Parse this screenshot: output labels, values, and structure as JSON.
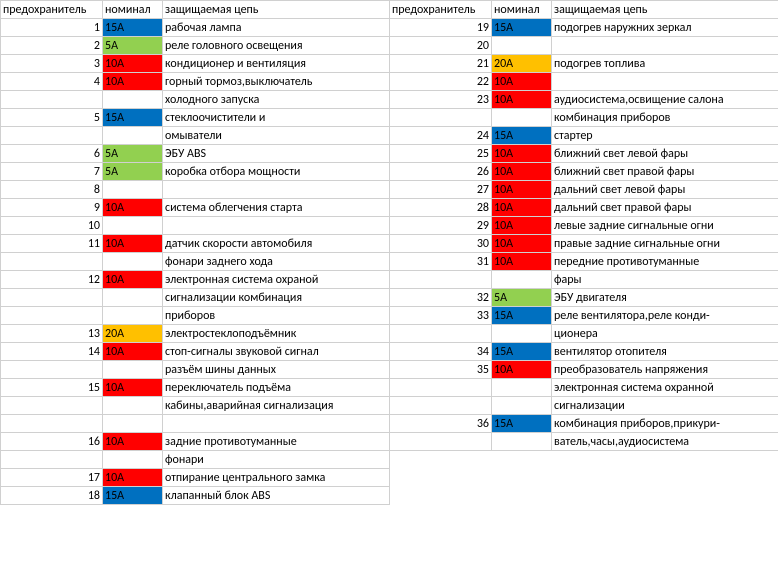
{
  "colors": {
    "blue": "#0070c0",
    "green": "#92d050",
    "red": "#ff0000",
    "orange": "#ffc000",
    "none": ""
  },
  "headers": {
    "fuse": "предохранитель",
    "nominal": "номинал",
    "circuit": "защищаемая цепь"
  },
  "left": [
    {
      "n": "1",
      "nom": "15А",
      "col": "blue",
      "desc": "рабочая лампа"
    },
    {
      "n": "2",
      "nom": "5А",
      "col": "green",
      "desc": "реле головного освещения"
    },
    {
      "n": "3",
      "nom": "10А",
      "col": "red",
      "desc": "кондиционер и вентиляция"
    },
    {
      "n": "4",
      "nom": "10А",
      "col": "red",
      "desc": "горный тормоз,выключатель"
    },
    {
      "n": "",
      "nom": "",
      "col": "none",
      "desc": "холодного запуска"
    },
    {
      "n": "5",
      "nom": "15А",
      "col": "blue",
      "desc": "стеклоочистители и"
    },
    {
      "n": "",
      "nom": "",
      "col": "none",
      "desc": "омыватели"
    },
    {
      "n": "6",
      "nom": "5А",
      "col": "green",
      "desc": "ЭБУ ABS"
    },
    {
      "n": "7",
      "nom": "5А",
      "col": "green",
      "desc": "коробка отбора мощности"
    },
    {
      "n": "8",
      "nom": "",
      "col": "none",
      "desc": ""
    },
    {
      "n": "9",
      "nom": "10А",
      "col": "red",
      "desc": "система облегчения старта"
    },
    {
      "n": "10",
      "nom": "",
      "col": "none",
      "desc": ""
    },
    {
      "n": "11",
      "nom": "10А",
      "col": "red",
      "desc": "датчик скорости автомобиля"
    },
    {
      "n": "",
      "nom": "",
      "col": "none",
      "desc": "фонари заднего хода"
    },
    {
      "n": "12",
      "nom": "10А",
      "col": "red",
      "desc": "электронная система охраной"
    },
    {
      "n": "",
      "nom": "",
      "col": "none",
      "desc": "сигнализации комбинация"
    },
    {
      "n": "",
      "nom": "",
      "col": "none",
      "desc": "приборов"
    },
    {
      "n": "13",
      "nom": "20А",
      "col": "orange",
      "desc": "электростеклоподъёмник"
    },
    {
      "n": "14",
      "nom": "10А",
      "col": "red",
      "desc": "стоп-сигналы звуковой сигнал"
    },
    {
      "n": "",
      "nom": "",
      "col": "none",
      "desc": "разъём шины данных"
    },
    {
      "n": "15",
      "nom": "10А",
      "col": "red",
      "desc": "переключатель подъёма"
    },
    {
      "n": "",
      "nom": "",
      "col": "none",
      "desc": "кабины,аварийная сигнализация"
    },
    {
      "n": "",
      "nom": "",
      "col": "none",
      "desc": ""
    },
    {
      "n": "16",
      "nom": "10А",
      "col": "red",
      "desc": "задние противотуманные"
    },
    {
      "n": "",
      "nom": "",
      "col": "none",
      "desc": "фонари"
    },
    {
      "n": "17",
      "nom": "10А",
      "col": "red",
      "desc": "отпирание центрального замка"
    },
    {
      "n": "18",
      "nom": "15А",
      "col": "blue",
      "desc": "клапанный блок ABS"
    }
  ],
  "right": [
    {
      "n": "19",
      "nom": "15А",
      "col": "blue",
      "desc": "подогрев наружних зеркал"
    },
    {
      "n": "20",
      "nom": "",
      "col": "none",
      "desc": ""
    },
    {
      "n": "21",
      "nom": "20А",
      "col": "orange",
      "desc": "подогрев топлива"
    },
    {
      "n": "22",
      "nom": "10А",
      "col": "red",
      "desc": ""
    },
    {
      "n": "23",
      "nom": "10А",
      "col": "red",
      "desc": "аудиосистема,освищение салона"
    },
    {
      "n": "",
      "nom": "",
      "col": "none",
      "desc": "комбинация приборов"
    },
    {
      "n": "24",
      "nom": "15А",
      "col": "blue",
      "desc": "стартер"
    },
    {
      "n": "25",
      "nom": "10А",
      "col": "red",
      "desc": "ближний свет левой фары"
    },
    {
      "n": "26",
      "nom": "10А",
      "col": "red",
      "desc": "ближний свет правой фары"
    },
    {
      "n": "27",
      "nom": "10А",
      "col": "red",
      "desc": "дальний свет левой фары"
    },
    {
      "n": "28",
      "nom": "10А",
      "col": "red",
      "desc": "дальний свет правой фары"
    },
    {
      "n": "29",
      "nom": "10А",
      "col": "red",
      "desc": "левые задние сигнальные огни"
    },
    {
      "n": "30",
      "nom": "10А",
      "col": "red",
      "desc": "правые задние сигнальные огни"
    },
    {
      "n": "31",
      "nom": "10А",
      "col": "red",
      "desc": "передние противотуманные"
    },
    {
      "n": "",
      "nom": "",
      "col": "none",
      "desc": "фары"
    },
    {
      "n": "32",
      "nom": "5А",
      "col": "green",
      "desc": "ЭБУ двигателя"
    },
    {
      "n": "33",
      "nom": "15А",
      "col": "blue",
      "desc": "реле вентилятора,реле конди-"
    },
    {
      "n": "",
      "nom": "",
      "col": "none",
      "desc": "ционера"
    },
    {
      "n": "34",
      "nom": "15А",
      "col": "blue",
      "desc": "вентилятор отопителя"
    },
    {
      "n": "35",
      "nom": "10А",
      "col": "red",
      "desc": "преобразователь напряжения"
    },
    {
      "n": "",
      "nom": "",
      "col": "none",
      "desc": "электронная система охранной"
    },
    {
      "n": "",
      "nom": "",
      "col": "none",
      "desc": "сигнализации"
    },
    {
      "n": "36",
      "nom": "15А",
      "col": "blue",
      "desc": "комбинация приборов,прикури-"
    },
    {
      "n": "",
      "nom": "",
      "col": "none",
      "desc": "ватель,часы,аудиосистема"
    }
  ]
}
